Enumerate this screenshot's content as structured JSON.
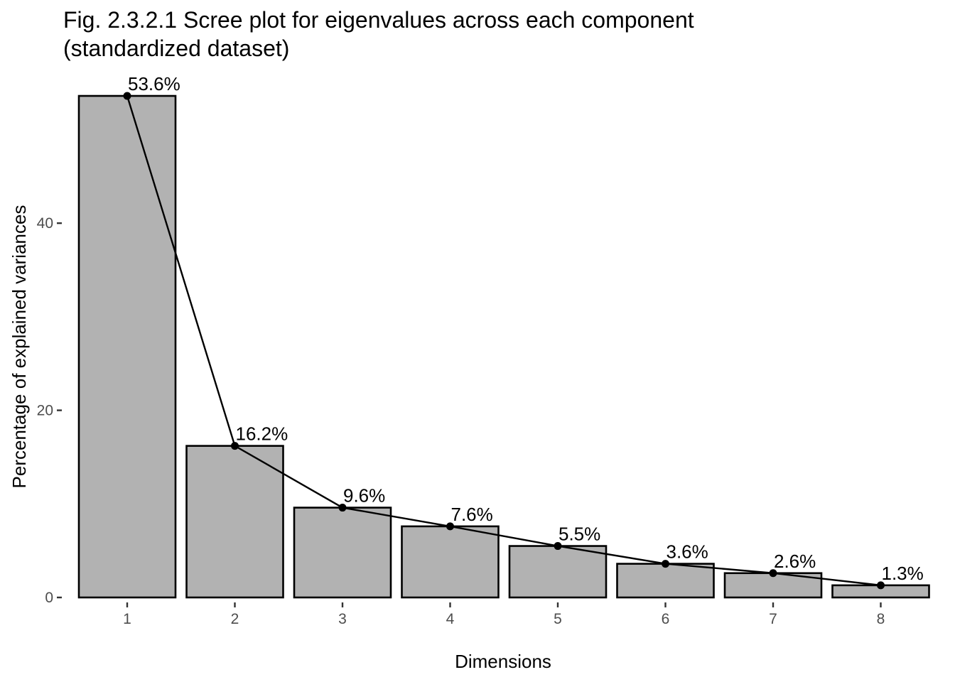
{
  "title_lines": [
    "Fig. 2.3.2.1 Scree plot for eigenvalues across each component",
    "(standardized dataset)"
  ],
  "chart_data": {
    "type": "bar",
    "overlay": "line",
    "title": "Fig. 2.3.2.1 Scree plot for eigenvalues across each component (standardized dataset)",
    "xlabel": "Dimensions",
    "ylabel": "Percentage of explained variances",
    "categories": [
      "1",
      "2",
      "3",
      "4",
      "5",
      "6",
      "7",
      "8"
    ],
    "values": [
      53.6,
      16.2,
      9.6,
      7.6,
      5.5,
      3.6,
      2.6,
      1.3
    ],
    "data_labels": [
      "53.6%",
      "16.2%",
      "9.6%",
      "7.6%",
      "5.5%",
      "3.6%",
      "2.6%",
      "1.3%"
    ],
    "ylim": [
      0,
      53.6
    ],
    "y_ticks": [
      0,
      20,
      40
    ],
    "grid": false,
    "legend": "none",
    "colors": {
      "bar_fill": "#b2b2b2",
      "bar_outline": "#000000",
      "line": "#000000",
      "points": "#000000"
    }
  }
}
